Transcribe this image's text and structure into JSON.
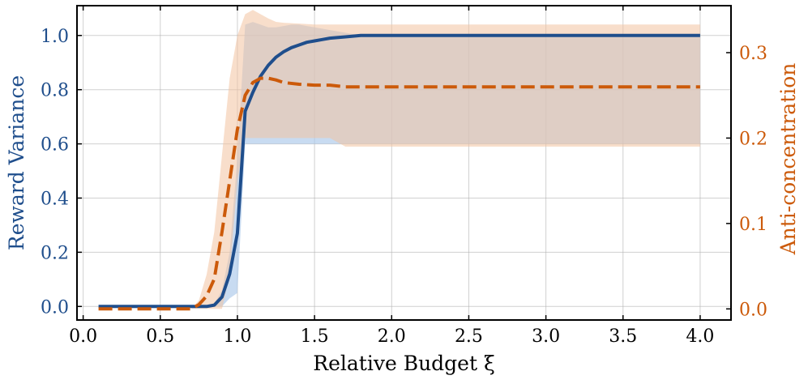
{
  "chart_data": {
    "type": "line",
    "xlabel": "Relative Budget ξ",
    "ylabel_left": "Reward Variance",
    "ylabel_right": "Anti-concentration",
    "xlim": [
      -0.04,
      4.2
    ],
    "ylim_left": [
      -0.05,
      1.11
    ],
    "ylim_right": [
      -0.013,
      0.355
    ],
    "x_ticks": [
      "0.0",
      "0.5",
      "1.0",
      "1.5",
      "2.0",
      "2.5",
      "3.0",
      "3.5",
      "4.0"
    ],
    "y_ticks_left": [
      "0.0",
      "0.2",
      "0.4",
      "0.6",
      "0.8",
      "1.0"
    ],
    "y_ticks_right": [
      "0.0",
      "0.1",
      "0.2",
      "0.3"
    ],
    "grid": true,
    "colors": {
      "left_series": "#1f4e8c",
      "left_band": "#aac7ea",
      "right_series": "#cc5a0a",
      "right_band": "#f2c3a0"
    },
    "series": [
      {
        "axis": "left",
        "style": "solid",
        "x": [
          0.1,
          0.5,
          0.7,
          0.8,
          0.85,
          0.9,
          0.95,
          1.0,
          1.05,
          1.1,
          1.15,
          1.2,
          1.25,
          1.3,
          1.35,
          1.4,
          1.45,
          1.5,
          1.55,
          1.6,
          1.7,
          1.8,
          2.0,
          2.5,
          3.0,
          3.5,
          4.0
        ],
        "y": [
          0.0,
          0.0,
          0.0,
          0.0,
          0.005,
          0.035,
          0.12,
          0.27,
          0.72,
          0.79,
          0.85,
          0.89,
          0.92,
          0.94,
          0.955,
          0.965,
          0.975,
          0.98,
          0.985,
          0.99,
          0.995,
          1.0,
          1.0,
          1.0,
          1.0,
          1.0,
          1.0
        ],
        "band_upper": [
          0.0,
          0.0,
          0.0,
          0.0,
          0.01,
          0.06,
          0.2,
          0.55,
          1.04,
          1.05,
          1.04,
          1.03,
          1.03,
          1.035,
          1.04,
          1.04,
          1.035,
          1.03,
          1.025,
          1.02,
          1.01,
          1.0,
          1.0,
          1.0,
          1.0,
          1.0,
          1.0
        ],
        "band_lower": [
          0.0,
          0.0,
          0.0,
          0.0,
          0.0,
          0.0,
          0.03,
          0.05,
          0.6,
          0.6,
          0.6,
          0.6,
          0.6,
          0.6,
          0.6,
          0.6,
          0.6,
          0.6,
          0.6,
          0.6,
          0.6,
          0.6,
          0.6,
          0.6,
          0.6,
          0.6,
          0.6
        ]
      },
      {
        "axis": "right",
        "style": "dashed",
        "x": [
          0.1,
          0.5,
          0.7,
          0.75,
          0.8,
          0.85,
          0.9,
          0.95,
          1.0,
          1.05,
          1.1,
          1.15,
          1.2,
          1.25,
          1.3,
          1.4,
          1.5,
          1.6,
          1.7,
          2.0,
          2.5,
          3.0,
          3.5,
          4.0
        ],
        "y": [
          0.0,
          0.0,
          0.0,
          0.005,
          0.015,
          0.035,
          0.09,
          0.15,
          0.21,
          0.25,
          0.265,
          0.27,
          0.27,
          0.268,
          0.265,
          0.263,
          0.262,
          0.262,
          0.26,
          0.26,
          0.26,
          0.26,
          0.26,
          0.26
        ],
        "band_upper": [
          0.0,
          0.0,
          0.0,
          0.01,
          0.04,
          0.09,
          0.18,
          0.27,
          0.32,
          0.345,
          0.35,
          0.345,
          0.34,
          0.336,
          0.335,
          0.334,
          0.333,
          0.333,
          0.333,
          0.333,
          0.333,
          0.333,
          0.333,
          0.333
        ],
        "band_lower": [
          0.0,
          0.0,
          0.0,
          0.0,
          0.0,
          0.0,
          0.0,
          0.04,
          0.15,
          0.2,
          0.2,
          0.2,
          0.2,
          0.2,
          0.2,
          0.2,
          0.2,
          0.2,
          0.19,
          0.19,
          0.19,
          0.19,
          0.19,
          0.19
        ]
      }
    ]
  }
}
